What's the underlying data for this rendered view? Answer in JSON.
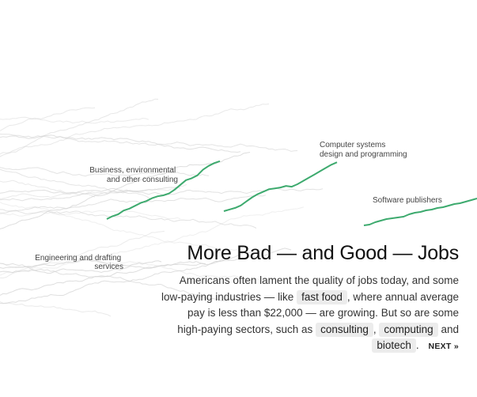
{
  "chart_data": {
    "type": "line",
    "title": "",
    "xlabel": "",
    "ylabel": "",
    "highlighted_series": [
      {
        "name": "Business, environmental and other consulting",
        "label_lines": [
          "Business, environmental",
          "and other consulting"
        ],
        "values": [
          [
            0,
            0
          ],
          [
            1,
            3
          ],
          [
            2,
            5
          ],
          [
            3,
            9
          ],
          [
            4,
            11
          ],
          [
            5,
            14
          ],
          [
            6,
            17
          ],
          [
            7,
            19
          ],
          [
            8,
            22
          ],
          [
            9,
            24
          ],
          [
            10,
            25
          ],
          [
            11,
            27
          ],
          [
            12,
            31
          ],
          [
            13,
            36
          ],
          [
            14,
            41
          ],
          [
            15,
            43
          ],
          [
            16,
            46
          ],
          [
            17,
            52
          ],
          [
            18,
            56
          ],
          [
            19,
            59
          ],
          [
            20,
            61
          ]
        ]
      },
      {
        "name": "Computer systems design and programming",
        "label_lines": [
          "Computer systems",
          "design and programming"
        ],
        "values": [
          [
            0,
            0
          ],
          [
            1,
            2
          ],
          [
            2,
            4
          ],
          [
            3,
            7
          ],
          [
            4,
            12
          ],
          [
            5,
            17
          ],
          [
            6,
            21
          ],
          [
            7,
            24
          ],
          [
            8,
            27
          ],
          [
            9,
            28
          ],
          [
            10,
            29
          ],
          [
            11,
            31
          ],
          [
            12,
            30
          ],
          [
            13,
            33
          ],
          [
            14,
            37
          ],
          [
            15,
            41
          ],
          [
            16,
            45
          ],
          [
            17,
            49
          ],
          [
            18,
            53
          ],
          [
            19,
            57
          ],
          [
            20,
            60
          ]
        ]
      },
      {
        "name": "Software publishers",
        "label_lines": [
          "Software publishers"
        ],
        "values": [
          [
            0,
            0
          ],
          [
            1,
            1
          ],
          [
            2,
            4
          ],
          [
            3,
            6
          ],
          [
            4,
            8
          ],
          [
            5,
            9
          ],
          [
            6,
            10
          ],
          [
            7,
            11
          ],
          [
            8,
            14
          ],
          [
            9,
            16
          ],
          [
            10,
            17
          ],
          [
            11,
            19
          ],
          [
            12,
            20
          ],
          [
            13,
            22
          ],
          [
            14,
            23
          ],
          [
            15,
            25
          ],
          [
            16,
            27
          ],
          [
            17,
            28
          ],
          [
            18,
            30
          ],
          [
            19,
            32
          ],
          [
            20,
            34
          ]
        ]
      }
    ],
    "labeled_background_series": [
      {
        "name": "Engineering and drafting services",
        "label_lines": [
          "Engineering and drafting",
          "services"
        ]
      }
    ],
    "background_series_count": 26,
    "colors": {
      "highlight": "#3daa6e",
      "background": "#d2d2d2"
    }
  },
  "story": {
    "headline": "More Bad — and Good — Jobs",
    "line1": "Americans often lament the quality of jobs today, and some",
    "line2_pre": "low-paying industries — like",
    "pill_fast_food": "fast food",
    "line2_post": ", where annual average",
    "line3": "pay is less than $22,000 — are growing. But so are some",
    "line4_pre": "high-paying sectors, such as",
    "pill_consulting": "consulting",
    "comma": ",",
    "pill_computing": "computing",
    "and_word": "and",
    "pill_biotech": "biotech",
    "period": ".",
    "next_label": "NEXT »"
  }
}
